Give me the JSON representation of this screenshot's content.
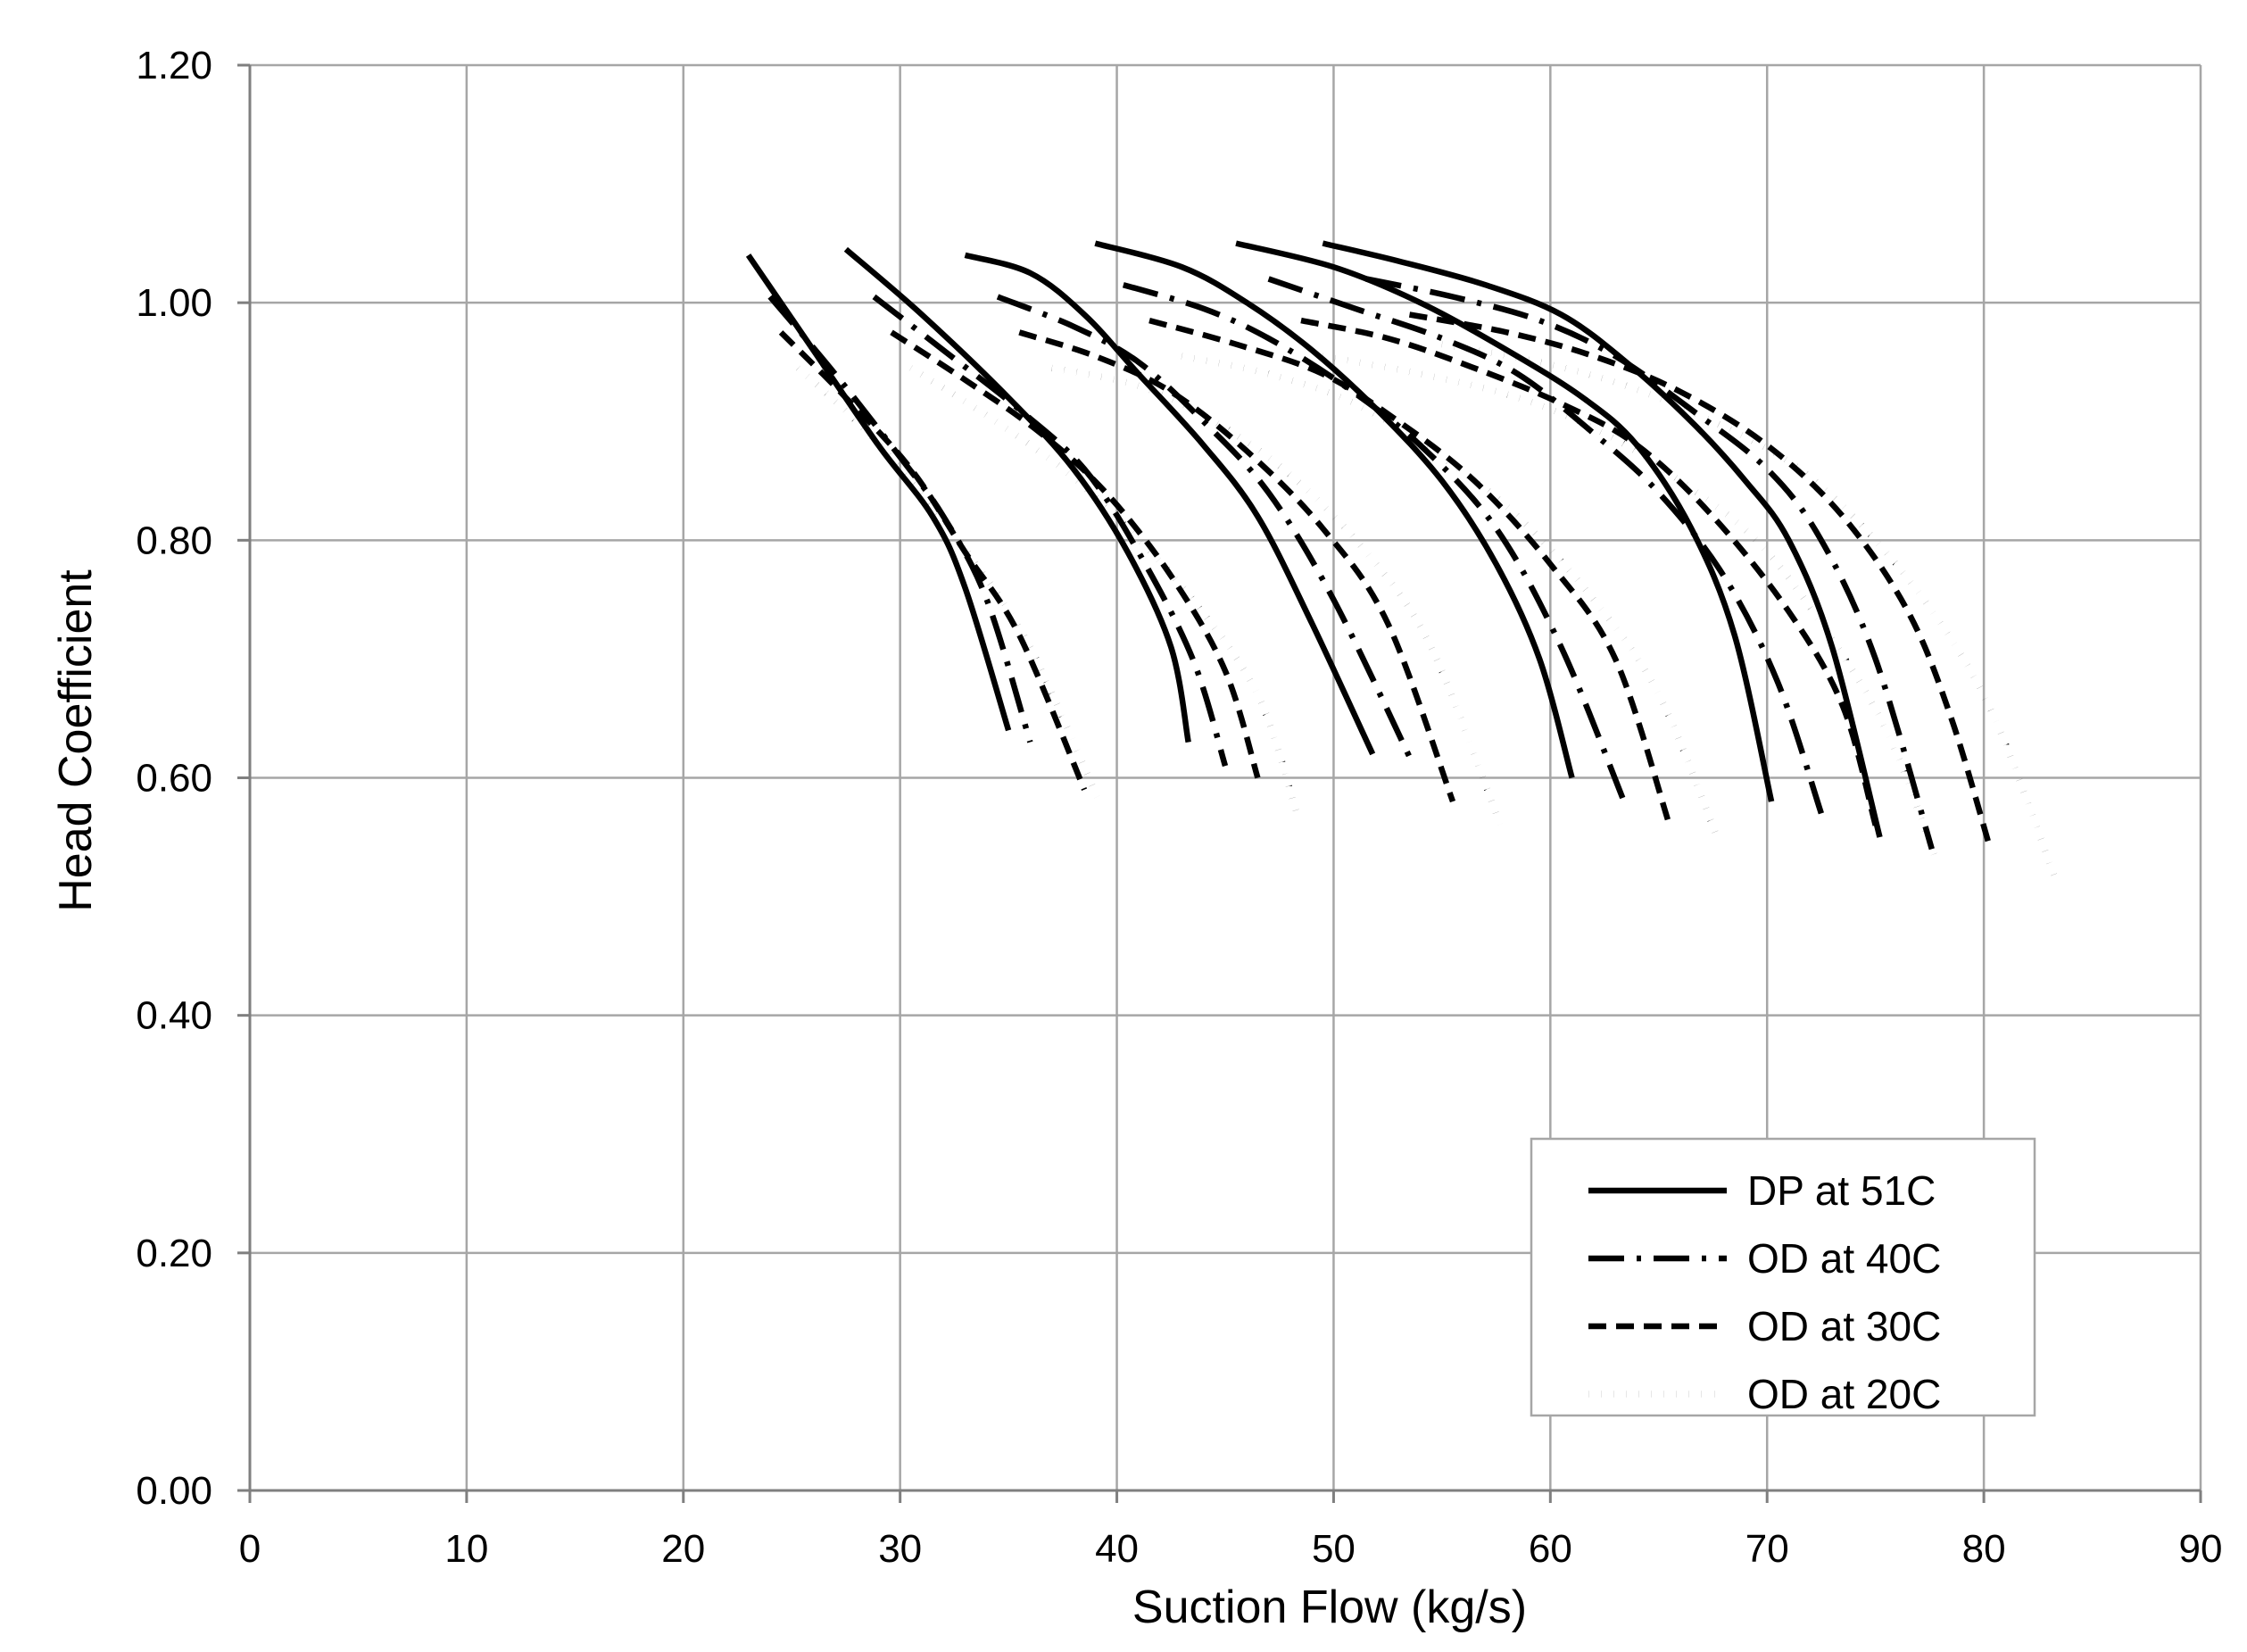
{
  "chart_data": {
    "type": "line",
    "title": "",
    "xlabel": "Suction Flow (kg/s)",
    "ylabel": "Head Coefficient",
    "xlim": [
      0,
      90
    ],
    "ylim": [
      0,
      1.2
    ],
    "x_ticks": [
      0,
      10,
      20,
      30,
      40,
      50,
      60,
      70,
      80,
      90
    ],
    "y_ticks": [
      "0.00",
      "0.20",
      "0.40",
      "0.60",
      "0.80",
      "1.00",
      "1.20"
    ],
    "grid": true,
    "legend_position": "bottom-right",
    "series": [
      {
        "name": "DP at 51C",
        "dash": "solid",
        "curves": [
          [
            [
              23.0,
              1.04
            ],
            [
              26.0,
              0.96
            ],
            [
              29.0,
              0.88
            ],
            [
              31.5,
              0.82
            ],
            [
              33.0,
              0.76
            ],
            [
              35.0,
              0.64
            ]
          ],
          [
            [
              27.5,
              1.045
            ],
            [
              31.0,
              0.99
            ],
            [
              35.0,
              0.92
            ],
            [
              38.0,
              0.86
            ],
            [
              40.5,
              0.79
            ],
            [
              42.5,
              0.71
            ],
            [
              43.3,
              0.63
            ]
          ],
          [
            [
              33.0,
              1.04
            ],
            [
              36.0,
              1.025
            ],
            [
              38.5,
              0.99
            ],
            [
              41.0,
              0.94
            ],
            [
              44.0,
              0.88
            ],
            [
              46.5,
              0.82
            ],
            [
              49.0,
              0.73
            ],
            [
              51.8,
              0.62
            ]
          ],
          [
            [
              39.0,
              1.05
            ],
            [
              43.0,
              1.03
            ],
            [
              46.0,
              1.0
            ],
            [
              49.0,
              0.96
            ],
            [
              52.0,
              0.91
            ],
            [
              55.0,
              0.85
            ],
            [
              57.5,
              0.78
            ],
            [
              59.5,
              0.7
            ],
            [
              61.0,
              0.6
            ]
          ],
          [
            [
              45.5,
              1.05
            ],
            [
              50.0,
              1.03
            ],
            [
              54.0,
              1.0
            ],
            [
              58.0,
              0.96
            ],
            [
              61.5,
              0.92
            ],
            [
              64.0,
              0.88
            ],
            [
              66.5,
              0.81
            ],
            [
              68.5,
              0.72
            ],
            [
              70.2,
              0.58
            ]
          ],
          [
            [
              49.5,
              1.05
            ],
            [
              53.0,
              1.035
            ],
            [
              57.0,
              1.015
            ],
            [
              60.5,
              0.99
            ],
            [
              63.5,
              0.95
            ],
            [
              66.5,
              0.9
            ],
            [
              69.0,
              0.85
            ],
            [
              71.0,
              0.8
            ],
            [
              73.0,
              0.71
            ],
            [
              75.2,
              0.55
            ]
          ]
        ]
      },
      {
        "name": "OD at 40C",
        "dash": "long-dash-dot",
        "curves": [
          [
            [
              24.0,
              1.005
            ],
            [
              27.0,
              0.94
            ],
            [
              30.0,
              0.87
            ],
            [
              32.0,
              0.82
            ],
            [
              34.0,
              0.75
            ],
            [
              36.0,
              0.63
            ]
          ],
          [
            [
              28.8,
              1.005
            ],
            [
              32.0,
              0.96
            ],
            [
              35.5,
              0.91
            ],
            [
              38.5,
              0.86
            ],
            [
              41.0,
              0.79
            ],
            [
              43.5,
              0.7
            ],
            [
              45.0,
              0.61
            ]
          ],
          [
            [
              34.5,
              1.005
            ],
            [
              38.0,
              0.98
            ],
            [
              41.0,
              0.95
            ],
            [
              44.0,
              0.9
            ],
            [
              47.0,
              0.84
            ],
            [
              50.0,
              0.75
            ],
            [
              53.7,
              0.61
            ]
          ],
          [
            [
              40.3,
              1.015
            ],
            [
              44.0,
              0.995
            ],
            [
              47.0,
              0.97
            ],
            [
              50.5,
              0.93
            ],
            [
              54.0,
              0.88
            ],
            [
              57.5,
              0.81
            ],
            [
              60.5,
              0.71
            ],
            [
              63.4,
              0.58
            ]
          ],
          [
            [
              47.0,
              1.02
            ],
            [
              51.0,
              0.995
            ],
            [
              55.0,
              0.97
            ],
            [
              58.5,
              0.94
            ],
            [
              62.0,
              0.89
            ],
            [
              65.0,
              0.84
            ],
            [
              68.0,
              0.77
            ],
            [
              70.5,
              0.68
            ],
            [
              72.5,
              0.57
            ]
          ],
          [
            [
              51.5,
              1.02
            ],
            [
              55.5,
              1.005
            ],
            [
              59.5,
              0.985
            ],
            [
              63.0,
              0.955
            ],
            [
              66.5,
              0.91
            ],
            [
              70.0,
              0.86
            ],
            [
              72.5,
              0.8
            ],
            [
              75.0,
              0.7
            ],
            [
              77.6,
              0.54
            ]
          ]
        ]
      },
      {
        "name": "OD at 30C",
        "dash": "dashed",
        "curves": [
          [
            [
              24.5,
              0.975
            ],
            [
              27.5,
              0.92
            ],
            [
              30.5,
              0.86
            ],
            [
              33.0,
              0.79
            ],
            [
              35.5,
              0.72
            ],
            [
              38.5,
              0.59
            ]
          ],
          [
            [
              29.6,
              0.975
            ],
            [
              33.0,
              0.935
            ],
            [
              36.5,
              0.89
            ],
            [
              39.5,
              0.84
            ],
            [
              42.5,
              0.77
            ],
            [
              45.0,
              0.69
            ],
            [
              46.5,
              0.6
            ]
          ],
          [
            [
              35.5,
              0.975
            ],
            [
              39.0,
              0.955
            ],
            [
              42.5,
              0.925
            ],
            [
              46.0,
              0.875
            ],
            [
              49.5,
              0.81
            ],
            [
              52.5,
              0.73
            ],
            [
              55.5,
              0.58
            ]
          ],
          [
            [
              41.5,
              0.985
            ],
            [
              45.5,
              0.965
            ],
            [
              49.5,
              0.94
            ],
            [
              53.0,
              0.9
            ],
            [
              56.5,
              0.85
            ],
            [
              60.0,
              0.78
            ],
            [
              63.0,
              0.7
            ],
            [
              65.5,
              0.56
            ]
          ],
          [
            [
              48.5,
              0.985
            ],
            [
              52.5,
              0.97
            ],
            [
              56.5,
              0.945
            ],
            [
              60.5,
              0.915
            ],
            [
              64.0,
              0.88
            ],
            [
              67.5,
              0.82
            ],
            [
              71.0,
              0.74
            ],
            [
              73.5,
              0.66
            ],
            [
              75.0,
              0.56
            ]
          ],
          [
            [
              53.5,
              0.99
            ],
            [
              58.0,
              0.975
            ],
            [
              62.0,
              0.955
            ],
            [
              66.0,
              0.925
            ],
            [
              70.0,
              0.88
            ],
            [
              73.5,
              0.82
            ],
            [
              76.5,
              0.74
            ],
            [
              78.5,
              0.65
            ],
            [
              80.3,
              0.54
            ]
          ]
        ]
      },
      {
        "name": "OD at 20C",
        "dash": "dotted",
        "curves": [
          [
            [
              25.3,
              0.945
            ],
            [
              28.0,
              0.9
            ],
            [
              31.0,
              0.84
            ],
            [
              33.5,
              0.78
            ],
            [
              36.0,
              0.71
            ],
            [
              39.3,
              0.575
            ]
          ],
          [
            [
              30.5,
              0.945
            ],
            [
              34.0,
              0.905
            ],
            [
              37.5,
              0.86
            ],
            [
              40.5,
              0.81
            ],
            [
              43.5,
              0.75
            ],
            [
              46.5,
              0.67
            ],
            [
              48.3,
              0.57
            ]
          ],
          [
            [
              37.0,
              0.945
            ],
            [
              41.0,
              0.93
            ],
            [
              44.5,
              0.9
            ],
            [
              48.0,
              0.855
            ],
            [
              51.5,
              0.79
            ],
            [
              54.5,
              0.71
            ],
            [
              57.8,
              0.555
            ]
          ],
          [
            [
              43.0,
              0.955
            ],
            [
              47.0,
              0.94
            ],
            [
              51.0,
              0.915
            ],
            [
              55.0,
              0.87
            ],
            [
              58.5,
              0.82
            ],
            [
              62.0,
              0.75
            ],
            [
              65.0,
              0.67
            ],
            [
              67.8,
              0.545
            ]
          ],
          [
            [
              49.5,
              0.955
            ],
            [
              54.0,
              0.94
            ],
            [
              58.5,
              0.92
            ],
            [
              62.5,
              0.89
            ],
            [
              66.0,
              0.85
            ],
            [
              69.5,
              0.8
            ],
            [
              72.5,
              0.73
            ],
            [
              75.5,
              0.64
            ],
            [
              77.7,
              0.535
            ]
          ],
          [
            [
              55.0,
              0.965
            ],
            [
              59.5,
              0.95
            ],
            [
              63.5,
              0.93
            ],
            [
              67.5,
              0.9
            ],
            [
              71.5,
              0.86
            ],
            [
              75.0,
              0.8
            ],
            [
              78.0,
              0.73
            ],
            [
              80.5,
              0.65
            ],
            [
              83.3,
              0.515
            ]
          ]
        ]
      }
    ]
  }
}
